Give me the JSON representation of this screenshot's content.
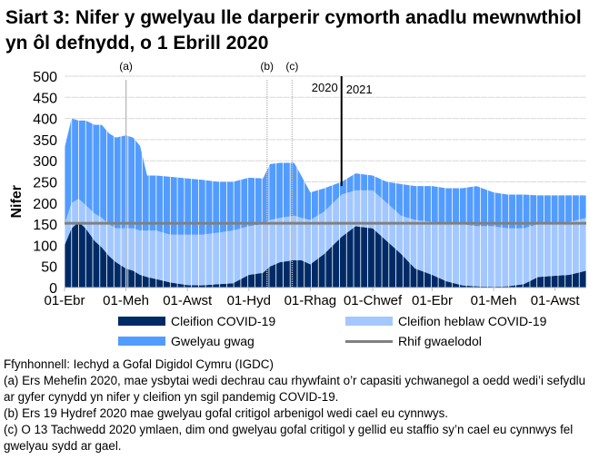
{
  "title": "Siart 3: Nifer y gwelyau lle darperir cymorth anadlu mewnwthiol yn ôl defnydd, o 1 Ebrill 2020",
  "chart_data": {
    "type": "area",
    "stacked": true,
    "title": "Siart 3: Nifer y gwelyau lle darperir cymorth anadlu mewnwthiol yn ôl defnydd, o 1 Ebrill 2020",
    "ylabel": "Nifer",
    "xlabel": "",
    "ylim": [
      0,
      500
    ],
    "yticks": [
      0,
      50,
      100,
      150,
      200,
      250,
      300,
      350,
      400,
      450,
      500
    ],
    "grid": true,
    "legend_position": "bottom",
    "xlim": [
      "2020-04-01",
      "2021-09-01"
    ],
    "xticks": [
      {
        "date": "2020-04-01",
        "label": "01-Ebr"
      },
      {
        "date": "2020-06-01",
        "label": "01-Meh"
      },
      {
        "date": "2020-08-01",
        "label": "01-Awst"
      },
      {
        "date": "2020-10-01",
        "label": "01-Hyd"
      },
      {
        "date": "2020-12-01",
        "label": "01-Rhag"
      },
      {
        "date": "2021-02-01",
        "label": "01-Chwef"
      },
      {
        "date": "2021-04-01",
        "label": "01-Ebr"
      },
      {
        "date": "2021-06-01",
        "label": "01-Meh"
      },
      {
        "date": "2021-08-01",
        "label": "01-Awst"
      }
    ],
    "dates": [
      "2020-04-01",
      "2020-04-08",
      "2020-04-15",
      "2020-04-22",
      "2020-05-01",
      "2020-05-08",
      "2020-05-15",
      "2020-05-22",
      "2020-06-01",
      "2020-06-08",
      "2020-06-15",
      "2020-06-22",
      "2020-07-01",
      "2020-07-15",
      "2020-08-01",
      "2020-08-15",
      "2020-09-01",
      "2020-09-15",
      "2020-10-01",
      "2020-10-15",
      "2020-10-22",
      "2020-11-01",
      "2020-11-15",
      "2020-11-22",
      "2020-12-01",
      "2020-12-15",
      "2021-01-01",
      "2021-01-15",
      "2021-02-01",
      "2021-02-15",
      "2021-03-01",
      "2021-03-15",
      "2021-04-01",
      "2021-04-15",
      "2021-05-01",
      "2021-05-15",
      "2021-06-01",
      "2021-06-15",
      "2021-07-01",
      "2021-07-15",
      "2021-08-01",
      "2021-08-15",
      "2021-09-01"
    ],
    "series": [
      {
        "name": "Cleifion COVID-19",
        "color": "#002A66",
        "values": [
          100,
          140,
          155,
          140,
          110,
          95,
          75,
          60,
          45,
          40,
          30,
          25,
          20,
          12,
          6,
          5,
          8,
          10,
          30,
          35,
          50,
          60,
          65,
          65,
          55,
          80,
          120,
          145,
          140,
          110,
          80,
          45,
          30,
          15,
          5,
          3,
          2,
          3,
          8,
          25,
          28,
          30,
          40
        ]
      },
      {
        "name": "Cleifion heblaw COVID-19",
        "color": "#A3C8FF",
        "values": [
          50,
          60,
          55,
          55,
          65,
          70,
          75,
          80,
          95,
          100,
          105,
          110,
          115,
          113,
          119,
          120,
          122,
          125,
          115,
          115,
          110,
          105,
          105,
          100,
          105,
          100,
          100,
          85,
          90,
          90,
          90,
          115,
          125,
          135,
          145,
          142,
          143,
          137,
          132,
          125,
          122,
          125,
          125
        ]
      },
      {
        "name": "Gwelyau gwag",
        "color": "#529CFF",
        "values": [
          180,
          200,
          185,
          200,
          210,
          220,
          215,
          215,
          220,
          215,
          200,
          130,
          130,
          137,
          133,
          130,
          120,
          115,
          115,
          108,
          132,
          130,
          125,
          100,
          65,
          55,
          30,
          40,
          35,
          50,
          75,
          80,
          85,
          85,
          85,
          95,
          80,
          80,
          80,
          68,
          68,
          63,
          53
        ]
      }
    ],
    "baseline": {
      "name": "Rhif gwaelodol",
      "value": 152,
      "color": "#808080"
    },
    "annotations": [
      {
        "label": "(a)",
        "date": "2020-06-01"
      },
      {
        "label": "(b)",
        "date": "2020-10-19"
      },
      {
        "label": "(c)",
        "date": "2020-11-13"
      }
    ],
    "year_divider": {
      "date": "2021-01-01",
      "left_label": "2020",
      "right_label": "2021"
    }
  },
  "notes": [
    "Ffynhonnell: Iechyd a Gofal Digidol Cymru (IGDC)",
    "(a) Ers Mehefin 2020, mae ysbytai wedi dechrau cau rhywfaint o’r capasiti ychwanegol a oedd wedi’i sefydlu ar gyfer cynydd yn nifer y cleifion yn sgil pandemig COVID-19.",
    "(b) Ers 19 Hydref 2020 mae gwelyau gofal critigol arbenigol wedi cael eu cynnwys.",
    "(c) O 13 Tachwedd 2020 ymlaen, dim ond gwelyau gofal critigol y gellid eu staffio sy’n cael eu cynnwys fel gwelyau sydd ar gael."
  ]
}
